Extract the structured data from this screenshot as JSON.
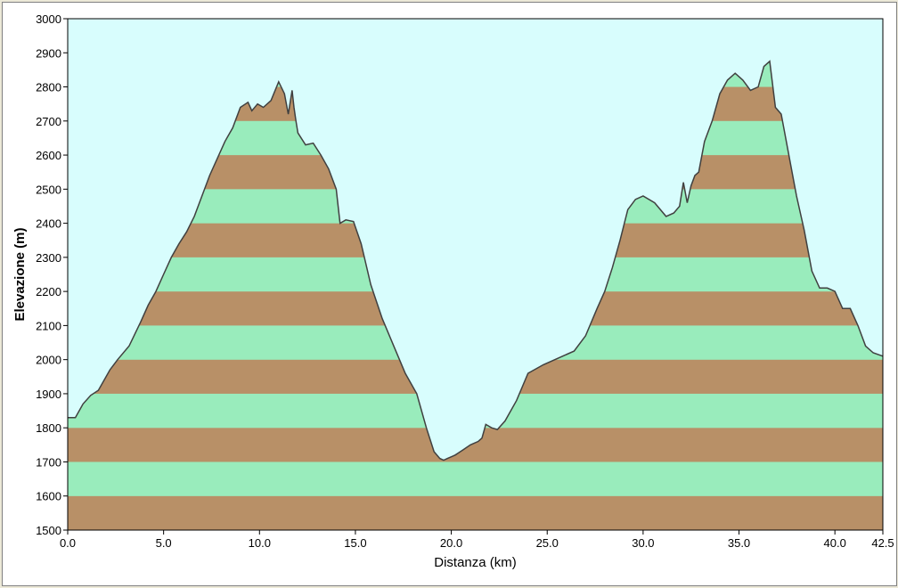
{
  "chart_data": {
    "type": "area",
    "title": "",
    "xlabel": "Distanza  (km)",
    "ylabel": "Elevazione  (m)",
    "xlim": [
      0,
      42.5
    ],
    "ylim": [
      1500,
      3000
    ],
    "x_ticks": [
      0,
      5,
      10,
      15,
      20,
      25,
      30,
      35,
      40,
      42.5
    ],
    "x_tick_labels": [
      "0.0",
      "5.0",
      "10.0",
      "15.0",
      "20.0",
      "25.0",
      "30.0",
      "35.0",
      "40.0",
      "42.5"
    ],
    "y_ticks": [
      1500,
      1600,
      1700,
      1800,
      1900,
      2000,
      2100,
      2200,
      2300,
      2400,
      2500,
      2600,
      2700,
      2800,
      2900,
      3000
    ],
    "y_tick_labels": [
      "1500",
      "1600",
      "1700",
      "1800",
      "1900",
      "2000",
      "2100",
      "2200",
      "2300",
      "2400",
      "2500",
      "2600",
      "2700",
      "2800",
      "2900",
      "3000"
    ],
    "grid": false,
    "legend": "none",
    "band_colors": [
      "#b89067",
      "#99ecbc"
    ],
    "sky_color": "#d8fdfd",
    "line_color": "#404040",
    "series": [
      {
        "x": [
          0,
          0.4,
          0.8,
          1.2,
          1.6,
          2.2,
          2.6,
          3.2,
          3.8,
          4.2,
          4.6,
          5.0,
          5.4,
          5.8,
          6.2,
          6.6,
          7.0,
          7.4,
          7.8,
          8.2,
          8.6,
          9.0,
          9.4,
          9.6,
          9.9,
          10.2,
          10.6,
          11.0,
          11.3,
          11.5,
          11.7,
          11.8,
          11.9,
          12.0,
          12.4,
          12.8,
          13.2,
          13.6,
          14.0,
          14.2,
          14.5,
          14.9,
          15.3,
          15.8,
          16.4,
          17.0,
          17.6,
          18.2,
          18.7,
          19.1,
          19.4,
          19.6,
          19.8,
          20.2,
          20.6,
          21.0,
          21.4,
          21.6,
          21.8,
          22.1,
          22.4,
          22.8,
          23.4,
          24.0,
          24.8,
          25.8,
          26.4,
          27.0,
          27.6,
          28.0,
          28.4,
          28.8,
          29.2,
          29.6,
          30.0,
          30.6,
          31.2,
          31.6,
          31.9,
          32.1,
          32.3,
          32.5,
          32.7,
          32.9,
          33.2,
          33.6,
          34.0,
          34.4,
          34.8,
          35.2,
          35.6,
          36.0,
          36.3,
          36.6,
          36.9,
          37.2,
          37.6,
          38.0,
          38.4,
          38.8,
          39.2,
          39.6,
          40.0,
          40.4,
          40.8,
          41.2,
          41.6,
          42.0,
          42.5
        ],
        "y": [
          1830,
          1830,
          1870,
          1895,
          1910,
          1970,
          2000,
          2040,
          2110,
          2160,
          2200,
          2250,
          2300,
          2340,
          2375,
          2420,
          2480,
          2540,
          2590,
          2640,
          2680,
          2740,
          2755,
          2730,
          2750,
          2740,
          2760,
          2815,
          2780,
          2720,
          2790,
          2740,
          2700,
          2665,
          2630,
          2635,
          2600,
          2560,
          2500,
          2400,
          2410,
          2405,
          2340,
          2220,
          2120,
          2040,
          1960,
          1900,
          1800,
          1730,
          1710,
          1705,
          1710,
          1720,
          1735,
          1750,
          1760,
          1770,
          1810,
          1800,
          1795,
          1820,
          1880,
          1960,
          1985,
          2010,
          2025,
          2070,
          2150,
          2200,
          2270,
          2350,
          2440,
          2470,
          2480,
          2460,
          2420,
          2430,
          2450,
          2520,
          2460,
          2510,
          2540,
          2550,
          2640,
          2700,
          2780,
          2820,
          2840,
          2820,
          2790,
          2800,
          2860,
          2875,
          2740,
          2720,
          2600,
          2480,
          2380,
          2260,
          2210,
          2210,
          2200,
          2150,
          2150,
          2100,
          2040,
          2020,
          2010
        ]
      }
    ]
  }
}
